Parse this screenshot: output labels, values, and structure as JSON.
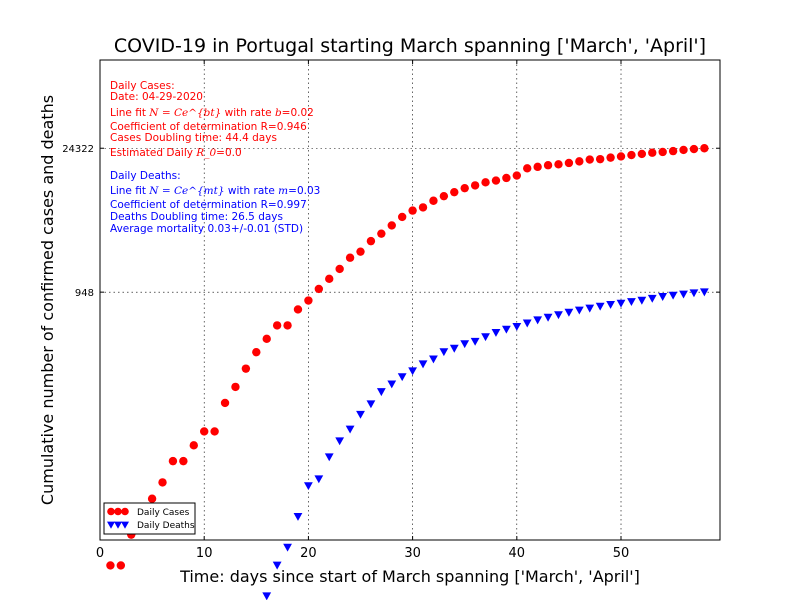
{
  "chart_data": {
    "type": "scatter",
    "title": "COVID-19 in Portugal starting March spanning ['March', 'April']",
    "xlabel": "Time: days since start of March spanning ['March', 'April']",
    "ylabel": "Cumulative number of confirmed cases and deaths",
    "xlim": [
      0,
      59.5
    ],
    "ylim_log10": [
      0.55,
      5.25
    ],
    "grid": true,
    "x_ticks": [
      {
        "value": 0,
        "label": "0"
      },
      {
        "value": 10,
        "label": "10"
      },
      {
        "value": 20,
        "label": "20"
      },
      {
        "value": 30,
        "label": "30"
      },
      {
        "value": 40,
        "label": "40"
      },
      {
        "value": 50,
        "label": "50"
      }
    ],
    "y_ticks": [
      {
        "value": 948,
        "label": "948"
      },
      {
        "value": 24322,
        "label": "24322"
      }
    ],
    "legend_position": "lower-left",
    "series": [
      {
        "name": "Daily Cases",
        "marker": "circle",
        "color": "#ff0000",
        "x": [
          1,
          2,
          3,
          4,
          5,
          6,
          7,
          8,
          9,
          10,
          11,
          12,
          13,
          14,
          15,
          16,
          17,
          18,
          19,
          20,
          21,
          22,
          23,
          24,
          25,
          26,
          27,
          28,
          29,
          30,
          31,
          32,
          33,
          34,
          35,
          36,
          37,
          38,
          39,
          40,
          41,
          42,
          43,
          44,
          45,
          46,
          47,
          48,
          49,
          50,
          51,
          52,
          53,
          54,
          55,
          56,
          57,
          58
        ],
        "y": [
          2,
          2,
          4,
          6,
          9,
          13,
          21,
          21,
          30,
          41,
          41,
          78,
          112,
          169,
          245,
          331,
          448,
          448,
          642,
          785,
          1020,
          1280,
          1600,
          2060,
          2362,
          2995,
          3544,
          4268,
          5170,
          5962,
          6408,
          7443,
          8251,
          9034,
          9886,
          10524,
          11278,
          11730,
          12442,
          13141,
          15472,
          15987,
          16585,
          16934,
          17448,
          18091,
          18841,
          19022,
          19685,
          20206,
          20863,
          21379,
          21982,
          22353,
          22797,
          23392,
          23864,
          24322
        ]
      },
      {
        "name": "Daily Deaths",
        "marker": "triangle-down",
        "color": "#0000ff",
        "x": [
          16,
          17,
          18,
          19,
          20,
          21,
          22,
          23,
          24,
          25,
          26,
          27,
          28,
          29,
          30,
          31,
          32,
          33,
          34,
          35,
          36,
          37,
          38,
          39,
          40,
          41,
          42,
          43,
          44,
          45,
          46,
          47,
          48,
          49,
          50,
          51,
          52,
          53,
          54,
          55,
          56,
          57,
          58
        ],
        "y": [
          1,
          2,
          3,
          6,
          12,
          14,
          23,
          33,
          43,
          60,
          76,
          100,
          119,
          140,
          160,
          187,
          209,
          246,
          266,
          295,
          311,
          345,
          380,
          409,
          435,
          470,
          504,
          535,
          567,
          599,
          629,
          657,
          687,
          714,
          735,
          762,
          785,
          820,
          854,
          880,
          903,
          928,
          948
        ]
      }
    ],
    "annotations": {
      "cases": {
        "heading": "Daily Cases:",
        "date": "Date: 04-29-2020",
        "fit_prefix": "Line fit ",
        "fit_formula": "N = Ce^{bt}",
        "fit_middle": " with rate ",
        "fit_param": "b",
        "fit_value": "=0.02",
        "r_value": "Coefficient of determination R=0.946",
        "doubling": "Cases Doubling time: 44.4 days",
        "r0_prefix": "Estimated Daily ",
        "r0_symbol": "R_0",
        "r0_value": "=0.0"
      },
      "deaths": {
        "heading": "Daily Deaths:",
        "fit_prefix": "Line fit ",
        "fit_formula": "N = Ce^{mt}",
        "fit_middle": " with rate ",
        "fit_param": "m",
        "fit_value": "=0.03",
        "r_value": "Coefficient of determination R=0.997",
        "doubling": "Deaths Doubling time: 26.5 days",
        "mortality": "Average mortality 0.03+/-0.01 (STD)"
      }
    }
  }
}
